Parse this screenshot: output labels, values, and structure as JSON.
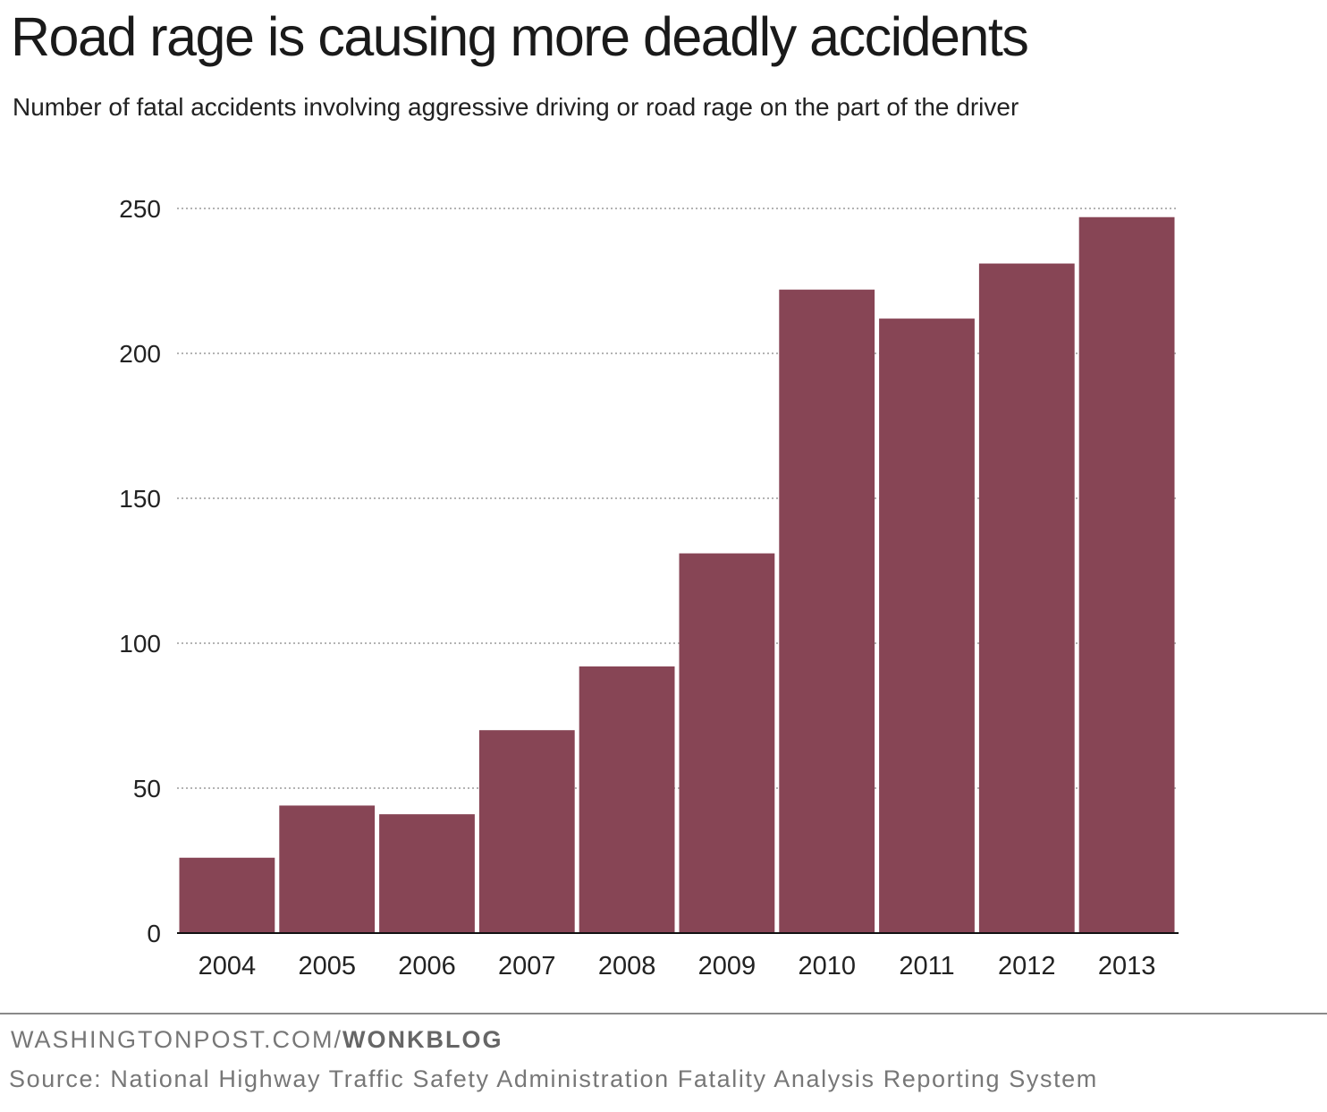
{
  "header": {
    "title": "Road rage is causing more deadly accidents",
    "subtitle": "Number of fatal accidents involving aggressive driving or road rage on the part of the driver"
  },
  "chart_data": {
    "type": "bar",
    "title": "Road rage is causing more deadly accidents",
    "subtitle": "Number of fatal accidents involving aggressive driving or road rage on the part of the driver",
    "xlabel": "",
    "ylabel": "",
    "categories": [
      "2004",
      "2005",
      "2006",
      "2007",
      "2008",
      "2009",
      "2010",
      "2011",
      "2012",
      "2013"
    ],
    "values": [
      26,
      44,
      41,
      70,
      92,
      131,
      222,
      212,
      231,
      247
    ],
    "ylim": [
      0,
      250
    ],
    "yticks": [
      0,
      50,
      100,
      150,
      200,
      250
    ],
    "ytick_labels": [
      "0",
      "50",
      "100",
      "150",
      "200",
      "250"
    ],
    "grid": true,
    "bar_color": "#874555"
  },
  "footer": {
    "credit_site": "WASHINGTONPOST.COM/",
    "credit_blog": "WONKBLOG",
    "source": "Source: National Highway Traffic Safety Administration Fatality Analysis Reporting System"
  }
}
